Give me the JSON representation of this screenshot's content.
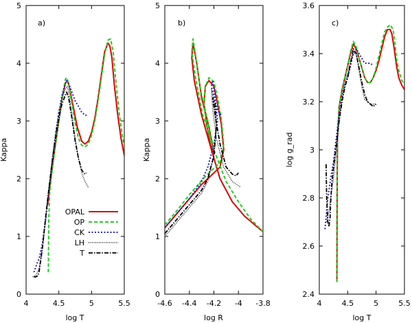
{
  "chart_data": [
    {
      "type": "line",
      "panel": "a)",
      "xlabel": "log T",
      "ylabel": "Kappa",
      "xlim": [
        4,
        5.5
      ],
      "ylim": [
        0,
        5
      ],
      "xticks": [
        "4",
        "4.5",
        "5",
        "5.5"
      ],
      "yticks": [
        "0",
        "1",
        "2",
        "3",
        "4",
        "5"
      ],
      "legend": {
        "position": "bottom-right",
        "entries": [
          "OPAL",
          "OP",
          "CK",
          "LH",
          "T"
        ]
      },
      "series": [
        {
          "name": "OPAL",
          "color": "#dd0000",
          "style": "solid",
          "x": [
            4.33,
            4.34,
            4.36,
            4.4,
            4.45,
            4.5,
            4.55,
            4.6,
            4.63,
            4.66,
            4.72,
            4.78,
            4.85,
            4.9,
            4.95,
            5.0,
            5.05,
            5.1,
            5.15,
            5.2,
            5.25,
            5.28,
            5.31,
            5.35,
            5.4,
            5.45,
            5.5
          ],
          "y": [
            1.55,
            1.65,
            1.85,
            2.2,
            2.6,
            3.0,
            3.4,
            3.65,
            3.7,
            3.6,
            3.25,
            2.9,
            2.65,
            2.6,
            2.65,
            2.8,
            3.05,
            3.4,
            3.8,
            4.2,
            4.35,
            4.3,
            4.1,
            3.6,
            3.1,
            2.7,
            2.4
          ]
        },
        {
          "name": "OP",
          "color": "#22cc22",
          "style": "dash",
          "x": [
            4.34,
            4.345,
            4.36,
            4.4,
            4.45,
            4.5,
            4.55,
            4.6,
            4.62,
            4.65,
            4.7,
            4.75,
            4.8,
            4.85,
            4.9,
            4.95,
            5.0,
            5.05,
            5.1,
            5.15,
            5.2,
            5.25,
            5.29,
            5.33,
            5.37,
            5.42,
            5.47,
            5.5
          ],
          "y": [
            0.38,
            1.2,
            1.75,
            2.15,
            2.6,
            3.0,
            3.4,
            3.72,
            3.75,
            3.65,
            3.3,
            2.95,
            2.7,
            2.58,
            2.55,
            2.6,
            2.75,
            3.0,
            3.35,
            3.75,
            4.15,
            4.4,
            4.42,
            4.2,
            3.7,
            3.15,
            2.75,
            2.55
          ]
        },
        {
          "name": "CK",
          "color": "#2222cc",
          "style": "dot",
          "x": [
            4.12,
            4.15,
            4.2,
            4.25,
            4.3,
            4.35,
            4.4,
            4.45,
            4.5,
            4.55,
            4.6,
            4.62,
            4.65,
            4.7,
            4.75,
            4.8,
            4.85,
            4.88,
            4.9,
            4.95
          ],
          "y": [
            0.38,
            0.48,
            0.62,
            0.88,
            1.3,
            1.8,
            2.3,
            2.75,
            3.15,
            3.45,
            3.65,
            3.7,
            3.65,
            3.5,
            3.35,
            3.25,
            3.15,
            3.12,
            3.1,
            3.1
          ]
        },
        {
          "name": "LH",
          "color": "#222222",
          "style": "finedot",
          "x": [
            4.1,
            4.15,
            4.2,
            4.25,
            4.3,
            4.35,
            4.4,
            4.45,
            4.5,
            4.55,
            4.6,
            4.63,
            4.66,
            4.7,
            4.75,
            4.8,
            4.85,
            4.9,
            4.95
          ],
          "y": [
            0.3,
            0.33,
            0.45,
            0.8,
            1.3,
            1.85,
            2.35,
            2.8,
            3.15,
            3.4,
            3.55,
            3.6,
            3.45,
            3.1,
            2.7,
            2.35,
            2.1,
            1.95,
            1.85
          ]
        },
        {
          "name": "T",
          "color": "#000000",
          "style": "dashdot",
          "x": [
            4.12,
            4.15,
            4.18,
            4.2,
            4.25,
            4.3,
            4.35,
            4.4,
            4.45,
            4.5,
            4.55,
            4.6,
            4.62,
            4.65,
            4.7,
            4.75,
            4.8,
            4.85,
            4.88,
            4.9,
            4.92
          ],
          "y": [
            0.3,
            0.3,
            0.32,
            0.4,
            0.8,
            1.35,
            1.85,
            2.3,
            2.7,
            3.05,
            3.3,
            3.45,
            3.5,
            3.4,
            3.05,
            2.65,
            2.35,
            2.15,
            2.1,
            2.08,
            2.1
          ]
        }
      ]
    },
    {
      "type": "line",
      "panel": "b)",
      "xlabel": "log R",
      "ylabel": "Kappa",
      "xlim": [
        -4.6,
        -3.8
      ],
      "ylim": [
        0,
        5
      ],
      "xticks": [
        "-4.6",
        "-4.4",
        "-4.2",
        "-4",
        "-3.8"
      ],
      "yticks": [
        "0",
        "1",
        "2",
        "3",
        "4",
        "5"
      ],
      "series": [
        {
          "name": "OPAL",
          "color": "#dd0000",
          "style": "solid",
          "x": [
            -4.6,
            -4.5,
            -4.4,
            -4.3,
            -4.25,
            -4.2,
            -4.15,
            -4.12,
            -4.14,
            -4.17,
            -4.2,
            -4.24,
            -4.27,
            -4.28,
            -4.26,
            -4.23,
            -4.2,
            -4.24,
            -4.3,
            -4.34,
            -4.37,
            -4.38,
            -4.36,
            -4.3,
            -4.22,
            -4.15,
            -4.05,
            -3.95,
            -3.8
          ],
          "y": [
            1.15,
            1.4,
            1.65,
            1.9,
            2.0,
            2.1,
            2.2,
            2.5,
            2.95,
            3.3,
            3.6,
            3.7,
            3.6,
            3.3,
            2.95,
            2.6,
            2.45,
            2.9,
            3.4,
            4.0,
            4.35,
            4.1,
            3.7,
            3.1,
            2.5,
            2.0,
            1.6,
            1.35,
            1.08
          ]
        },
        {
          "name": "OP",
          "color": "#22cc22",
          "style": "dash",
          "x": [
            -4.6,
            -4.5,
            -4.4,
            -4.3,
            -4.25,
            -4.2,
            -4.15,
            -4.12,
            -4.14,
            -4.17,
            -4.2,
            -4.24,
            -4.27,
            -4.28,
            -4.26,
            -4.22,
            -4.2,
            -4.25,
            -4.31,
            -4.35,
            -4.37,
            -4.38,
            -4.35,
            -4.29,
            -4.2,
            -4.1,
            -4.0,
            -3.9,
            -3.8
          ],
          "y": [
            1.2,
            1.45,
            1.72,
            1.97,
            2.08,
            2.18,
            2.28,
            2.6,
            3.05,
            3.4,
            3.68,
            3.75,
            3.6,
            3.3,
            2.95,
            2.62,
            2.5,
            3.0,
            3.55,
            4.15,
            4.42,
            4.2,
            3.75,
            3.1,
            2.5,
            1.95,
            1.6,
            1.3,
            1.08
          ]
        },
        {
          "name": "CK",
          "color": "#2222cc",
          "style": "dot",
          "x": [
            -4.6,
            -4.5,
            -4.4,
            -4.3,
            -4.25,
            -4.2,
            -4.17,
            -4.19,
            -4.21,
            -4.22,
            -4.2,
            -4.17,
            -4.15,
            -4.13
          ],
          "y": [
            1.15,
            1.4,
            1.65,
            1.95,
            2.2,
            2.6,
            3.0,
            3.4,
            3.7,
            3.6,
            3.4,
            3.2,
            3.12,
            3.1
          ]
        },
        {
          "name": "LH",
          "color": "#222222",
          "style": "finedot",
          "x": [
            -4.6,
            -4.5,
            -4.4,
            -4.3,
            -4.25,
            -4.2,
            -4.18,
            -4.2,
            -4.22,
            -4.21,
            -4.18,
            -4.12,
            -4.05,
            -4.0,
            -3.98
          ],
          "y": [
            1.0,
            1.25,
            1.5,
            1.75,
            1.95,
            2.4,
            2.9,
            3.3,
            3.55,
            3.2,
            2.7,
            2.2,
            1.95,
            1.88,
            1.85
          ]
        },
        {
          "name": "T",
          "color": "#000000",
          "style": "dashdot",
          "x": [
            -4.6,
            -4.5,
            -4.4,
            -4.3,
            -4.25,
            -4.2,
            -4.18,
            -4.19,
            -4.21,
            -4.19,
            -4.15,
            -4.1,
            -4.05,
            -4.02,
            -4.0
          ],
          "y": [
            1.05,
            1.3,
            1.55,
            1.8,
            2.0,
            2.4,
            2.9,
            3.3,
            3.4,
            3.1,
            2.6,
            2.2,
            2.08,
            2.05,
            2.1
          ]
        }
      ]
    },
    {
      "type": "line",
      "panel": "c)",
      "xlabel": "log T",
      "ylabel": "log g_rad",
      "xlim": [
        4,
        5.5
      ],
      "ylim": [
        2.4,
        3.6
      ],
      "xticks": [
        "4",
        "4.5",
        "5",
        "5.5"
      ],
      "yticks": [
        "2.4",
        "2.6",
        "2.8",
        "3",
        "3.2",
        "3.4",
        "3.6"
      ],
      "series": [
        {
          "name": "OPAL",
          "color": "#dd0000",
          "style": "solid",
          "x": [
            4.31,
            4.315,
            4.32,
            4.35,
            4.4,
            4.45,
            4.5,
            4.55,
            4.6,
            4.65,
            4.7,
            4.75,
            4.8,
            4.85,
            4.9,
            4.95,
            5.0,
            5.05,
            5.1,
            5.15,
            5.2,
            5.25,
            5.28,
            5.32,
            5.36,
            5.4,
            5.45,
            5.5
          ],
          "y": [
            2.45,
            2.85,
            3.05,
            3.18,
            3.25,
            3.3,
            3.35,
            3.4,
            3.44,
            3.42,
            3.38,
            3.34,
            3.3,
            3.28,
            3.28,
            3.3,
            3.33,
            3.37,
            3.42,
            3.47,
            3.5,
            3.5,
            3.48,
            3.42,
            3.35,
            3.3,
            3.27,
            3.25
          ]
        },
        {
          "name": "OP",
          "color": "#22cc22",
          "style": "dash",
          "x": [
            4.31,
            4.312,
            4.32,
            4.35,
            4.4,
            4.45,
            4.5,
            4.55,
            4.6,
            4.65,
            4.7,
            4.75,
            4.8,
            4.85,
            4.9,
            4.95,
            5.0,
            5.05,
            5.1,
            5.15,
            5.2,
            5.25,
            5.3,
            5.33,
            5.36,
            5.4,
            5.45,
            5.5
          ],
          "y": [
            2.45,
            2.8,
            3.05,
            3.18,
            3.25,
            3.3,
            3.35,
            3.41,
            3.45,
            3.43,
            3.38,
            3.34,
            3.3,
            3.28,
            3.28,
            3.3,
            3.34,
            3.39,
            3.44,
            3.49,
            3.51,
            3.52,
            3.5,
            3.45,
            3.38,
            3.33,
            3.29,
            3.27
          ]
        },
        {
          "name": "CK",
          "color": "#2222cc",
          "style": "dot",
          "x": [
            4.1,
            4.12,
            4.15,
            4.2,
            4.25,
            4.3,
            4.35,
            4.4,
            4.45,
            4.5,
            4.55,
            4.6,
            4.65,
            4.7,
            4.75,
            4.8,
            4.85,
            4.9,
            4.95
          ],
          "y": [
            2.67,
            2.72,
            2.8,
            2.88,
            2.95,
            3.05,
            3.15,
            3.22,
            3.27,
            3.3,
            3.35,
            3.4,
            3.42,
            3.4,
            3.38,
            3.36,
            3.36,
            3.36,
            3.35
          ]
        },
        {
          "name": "LH",
          "color": "#222222",
          "style": "finedot",
          "x": [
            4.13,
            4.15,
            4.18,
            4.2,
            4.25,
            4.3,
            4.35,
            4.4,
            4.45,
            4.5,
            4.55,
            4.6,
            4.65,
            4.7,
            4.75,
            4.8,
            4.85,
            4.9,
            4.95,
            5.0
          ],
          "y": [
            2.7,
            2.72,
            2.76,
            2.8,
            2.88,
            3.0,
            3.12,
            3.22,
            3.28,
            3.32,
            3.37,
            3.4,
            3.4,
            3.33,
            3.26,
            3.21,
            3.2,
            3.19,
            3.19,
            3.19
          ]
        },
        {
          "name": "T",
          "color": "#000000",
          "style": "dashdot",
          "x": [
            4.12,
            4.13,
            4.15,
            4.17,
            4.19,
            4.2,
            4.22,
            4.25,
            4.3,
            4.35,
            4.4,
            4.45,
            4.5,
            4.55,
            4.6,
            4.65,
            4.7,
            4.75,
            4.8,
            4.85,
            4.9,
            4.95,
            5.0
          ],
          "y": [
            2.94,
            2.8,
            2.7,
            2.68,
            2.72,
            2.78,
            2.86,
            2.93,
            3.02,
            3.12,
            3.2,
            3.26,
            3.3,
            3.36,
            3.42,
            3.4,
            3.34,
            3.28,
            3.23,
            3.2,
            3.19,
            3.18,
            3.19
          ]
        }
      ]
    }
  ]
}
